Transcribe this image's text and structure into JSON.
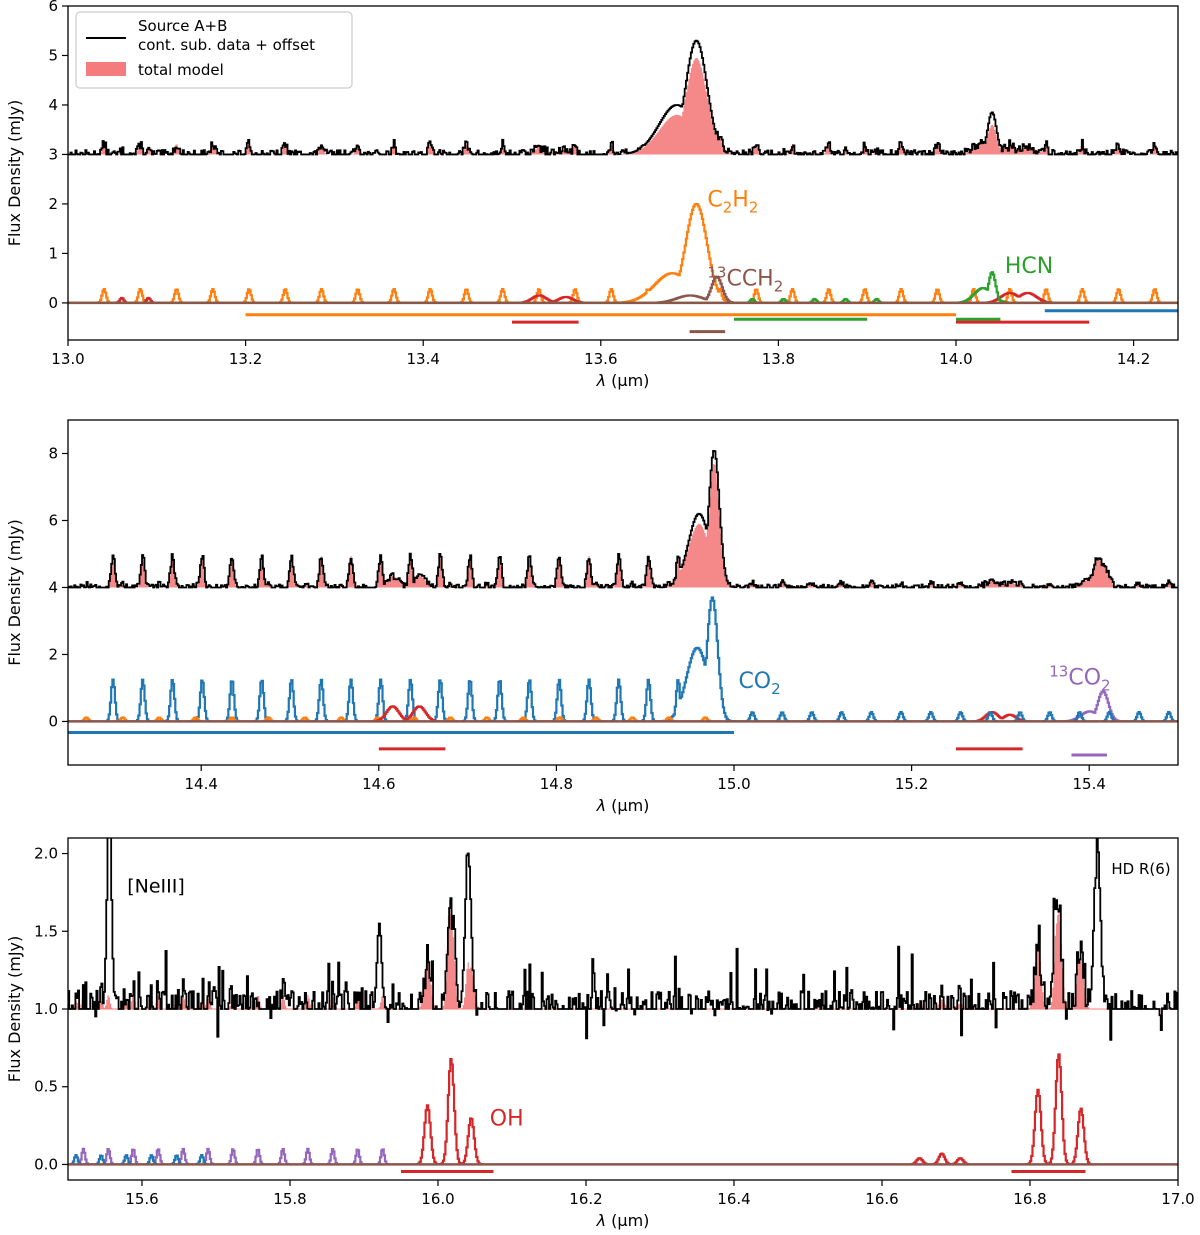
{
  "legend": {
    "data_label_line1": "Source A+B",
    "data_label_line2": "cont. sub. data + offset",
    "model_label": "total model"
  },
  "colors": {
    "data": "#000000",
    "model": "#f47c7c",
    "C2H2": "#ff7f0e",
    "13CCH2": "#8c564b",
    "HCN": "#2ca02c",
    "OH": "#d62728",
    "CO2": "#1f77b4",
    "13CO2": "#9467bd"
  },
  "chart_data": [
    {
      "type": "line",
      "panel": "top",
      "xlabel_prefix": "λ",
      "xlabel_unit": "(μm)",
      "ylabel": "Flux Density (mJy)",
      "xlim": [
        13.0,
        14.25
      ],
      "ylim": [
        -0.75,
        6.0
      ],
      "xticks": [
        "13.0",
        "13.2",
        "13.4",
        "13.6",
        "13.8",
        "14.0",
        "14.2"
      ],
      "xtick_values": [
        13.0,
        13.2,
        13.4,
        13.6,
        13.8,
        14.0,
        14.2
      ],
      "yticks": [
        "0",
        "1",
        "2",
        "3",
        "4",
        "5",
        "6"
      ],
      "ytick_values": [
        0,
        1,
        2,
        3,
        4,
        5,
        6
      ],
      "data_offset": 3.0,
      "data_peaks": [
        {
          "x": 13.707,
          "y": 5.3,
          "w": 0.012
        },
        {
          "x": 13.685,
          "y": 4.0,
          "w": 0.02
        },
        {
          "x": 14.04,
          "y": 3.85,
          "w": 0.005
        }
      ],
      "model_peaks": [
        {
          "x": 13.707,
          "y": 4.95,
          "w": 0.012
        },
        {
          "x": 13.685,
          "y": 3.8,
          "w": 0.02
        },
        {
          "x": 14.04,
          "y": 3.6,
          "w": 0.005
        }
      ],
      "species": [
        {
          "name": "C2H2",
          "lines": {
            "start": 13.04,
            "step": 0.0408,
            "end": 14.24,
            "h": 0.28
          },
          "peaks": [
            {
              "x": 13.707,
              "y": 2.0,
              "w": 0.012
            },
            {
              "x": 13.68,
              "y": 0.6,
              "w": 0.02
            }
          ]
        },
        {
          "name": "OH",
          "lines": {
            "start": 13.06,
            "step": 0.03,
            "end": 13.1,
            "h": 0.1
          },
          "peaks": [
            {
              "x": 13.53,
              "y": 0.15,
              "w": 0.008
            },
            {
              "x": 13.56,
              "y": 0.12,
              "w": 0.008
            },
            {
              "x": 14.06,
              "y": 0.2,
              "w": 0.01
            },
            {
              "x": 14.08,
              "y": 0.2,
              "w": 0.01
            }
          ]
        },
        {
          "name": "13CCH2",
          "lines": null,
          "peaks": [
            {
              "x": 13.73,
              "y": 0.53,
              "w": 0.006
            },
            {
              "x": 13.7,
              "y": 0.15,
              "w": 0.015
            }
          ]
        },
        {
          "name": "HCN",
          "lines": {
            "start": 13.77,
            "step": 0.035,
            "end": 13.92,
            "h": 0.08
          },
          "peaks": [
            {
              "x": 14.04,
              "y": 0.62,
              "w": 0.004
            },
            {
              "x": 14.03,
              "y": 0.3,
              "w": 0.01
            }
          ]
        }
      ],
      "labels": [
        {
          "text": "C",
          "sub": "2",
          "text2": "H",
          "sub2": "2",
          "sup": "",
          "x": 13.72,
          "y": 1.95,
          "species": "C2H2"
        },
        {
          "text": "CCH",
          "sub": "2",
          "text2": "",
          "sub2": "",
          "sup": "13",
          "x": 13.72,
          "y": 0.35,
          "species": "13CCH2"
        },
        {
          "text": "HCN",
          "sub": "",
          "text2": "",
          "sub2": "",
          "sup": "",
          "x": 14.055,
          "y": 0.6,
          "species": "HCN"
        }
      ],
      "bars": [
        {
          "species": "C2H2",
          "x1": 13.2,
          "x2": 14.0,
          "y": -0.24
        },
        {
          "species": "OH",
          "x1": 13.5,
          "x2": 13.575,
          "y": -0.39
        },
        {
          "species": "13CCH2",
          "x1": 13.7,
          "x2": 13.74,
          "y": -0.58
        },
        {
          "species": "HCN",
          "x1": 13.75,
          "x2": 13.9,
          "y": -0.33
        },
        {
          "species": "HCN",
          "x1": 14.0,
          "x2": 14.05,
          "y": -0.33
        },
        {
          "species": "OH",
          "x1": 14.0,
          "x2": 14.15,
          "y": -0.39
        },
        {
          "species": "CO2",
          "x1": 14.1,
          "x2": 14.25,
          "y": -0.16
        }
      ]
    },
    {
      "type": "line",
      "panel": "middle",
      "xlabel_prefix": "λ",
      "xlabel_unit": "(μm)",
      "ylabel": "Flux Density (mJy)",
      "xlim": [
        14.25,
        15.5
      ],
      "ylim": [
        -1.3,
        9.0
      ],
      "xticks": [
        "14.4",
        "14.6",
        "14.8",
        "15.0",
        "15.2",
        "15.4"
      ],
      "xtick_values": [
        14.4,
        14.6,
        14.8,
        15.0,
        15.2,
        15.4
      ],
      "yticks": [
        "0",
        "2",
        "4",
        "6",
        "8"
      ],
      "ytick_values": [
        0,
        2,
        4,
        6,
        8
      ],
      "data_offset": 4.0,
      "data_peaks": [
        {
          "x": 14.977,
          "y": 8.1,
          "w": 0.006
        },
        {
          "x": 14.96,
          "y": 6.2,
          "w": 0.012
        },
        {
          "x": 15.41,
          "y": 4.6,
          "w": 0.006
        }
      ],
      "model_peaks": [
        {
          "x": 14.977,
          "y": 7.7,
          "w": 0.006
        },
        {
          "x": 14.96,
          "y": 5.9,
          "w": 0.012
        },
        {
          "x": 15.41,
          "y": 4.9,
          "w": 0.006
        }
      ],
      "species": [
        {
          "name": "CO2",
          "lines": {
            "start": 14.3,
            "step": 0.0335,
            "end": 14.94,
            "h": 1.25
          },
          "peaks": [
            {
              "x": 14.975,
              "y": 3.7,
              "w": 0.006
            },
            {
              "x": 14.958,
              "y": 2.2,
              "w": 0.012
            }
          ]
        },
        {
          "name": "C2H2",
          "lines": {
            "start": 14.27,
            "step": 0.041,
            "end": 14.99,
            "h": 0.12
          },
          "peaks": []
        },
        {
          "name": "OH",
          "lines": null,
          "peaks": [
            {
              "x": 14.615,
              "y": 0.45,
              "w": 0.007
            },
            {
              "x": 14.645,
              "y": 0.45,
              "w": 0.007
            },
            {
              "x": 15.29,
              "y": 0.28,
              "w": 0.007
            },
            {
              "x": 15.31,
              "y": 0.2,
              "w": 0.007
            }
          ]
        },
        {
          "name": "13CO2",
          "lines": null,
          "peaks": [
            {
              "x": 15.415,
              "y": 0.9,
              "w": 0.006
            },
            {
              "x": 15.4,
              "y": 0.3,
              "w": 0.01
            }
          ]
        }
      ],
      "co2_tail": {
        "start": 15.02,
        "step": 0.0335,
        "end": 15.5,
        "h": 0.28
      },
      "labels": [
        {
          "text": "CO",
          "sub": "2",
          "text2": "",
          "sub2": "",
          "sup": "",
          "x": 15.005,
          "y": 1.0,
          "species": "CO2"
        },
        {
          "text": "CO",
          "sub": "2",
          "text2": "",
          "sub2": "",
          "sup": "13",
          "x": 15.355,
          "y": 1.1,
          "species": "13CO2"
        }
      ],
      "bars": [
        {
          "species": "CO2",
          "x1": 14.25,
          "x2": 15.0,
          "y": -0.33
        },
        {
          "species": "OH",
          "x1": 14.6,
          "x2": 14.675,
          "y": -0.82
        },
        {
          "species": "OH",
          "x1": 15.25,
          "x2": 15.325,
          "y": -0.82
        },
        {
          "species": "13CO2",
          "x1": 15.38,
          "x2": 15.42,
          "y": -1.0
        }
      ]
    },
    {
      "type": "line",
      "panel": "bottom",
      "xlabel_prefix": "λ",
      "xlabel_unit": "(μm)",
      "ylabel": "Flux Density (mJy)",
      "xlim": [
        15.5,
        17.0
      ],
      "ylim": [
        -0.1,
        2.1
      ],
      "xticks": [
        "15.6",
        "15.8",
        "16.0",
        "16.2",
        "16.4",
        "16.6",
        "16.8",
        "17.0"
      ],
      "xtick_values": [
        15.6,
        15.8,
        16.0,
        16.2,
        16.4,
        16.6,
        16.8,
        17.0
      ],
      "yticks": [
        "0.0",
        "0.5",
        "1.0",
        "1.5",
        "2.0"
      ],
      "ytick_values": [
        0.0,
        0.5,
        1.0,
        1.5,
        2.0
      ],
      "data_offset": 1.0,
      "data_peaks": [
        {
          "x": 15.555,
          "y": 2.3,
          "w": 0.003
        },
        {
          "x": 16.04,
          "y": 2.0,
          "w": 0.004
        },
        {
          "x": 16.02,
          "y": 1.6,
          "w": 0.003
        },
        {
          "x": 15.92,
          "y": 1.55,
          "w": 0.003
        },
        {
          "x": 16.835,
          "y": 1.7,
          "w": 0.004
        },
        {
          "x": 16.89,
          "y": 2.1,
          "w": 0.004
        }
      ],
      "model_peaks": [
        {
          "x": 15.985,
          "y": 1.35,
          "w": 0.003
        },
        {
          "x": 16.015,
          "y": 1.7,
          "w": 0.003
        },
        {
          "x": 16.04,
          "y": 1.3,
          "w": 0.003
        },
        {
          "x": 16.81,
          "y": 1.35,
          "w": 0.003
        },
        {
          "x": 16.835,
          "y": 1.55,
          "w": 0.003
        },
        {
          "x": 16.865,
          "y": 1.3,
          "w": 0.003
        }
      ],
      "species": [
        {
          "name": "OH",
          "lines": null,
          "peaks": [
            {
              "x": 15.985,
              "y": 0.38,
              "w": 0.004
            },
            {
              "x": 16.017,
              "y": 0.68,
              "w": 0.004
            },
            {
              "x": 16.044,
              "y": 0.3,
              "w": 0.004
            },
            {
              "x": 16.81,
              "y": 0.48,
              "w": 0.004
            },
            {
              "x": 16.838,
              "y": 0.71,
              "w": 0.004
            },
            {
              "x": 16.868,
              "y": 0.36,
              "w": 0.004
            },
            {
              "x": 16.65,
              "y": 0.04,
              "w": 0.004
            },
            {
              "x": 16.68,
              "y": 0.07,
              "w": 0.004
            },
            {
              "x": 16.705,
              "y": 0.04,
              "w": 0.004
            }
          ]
        },
        {
          "name": "13CO2",
          "lines": {
            "start": 15.52,
            "step": 0.0337,
            "end": 15.95,
            "h": 0.1
          },
          "peaks": []
        },
        {
          "name": "CO2",
          "lines": {
            "start": 15.51,
            "step": 0.034,
            "end": 15.7,
            "h": 0.06
          },
          "peaks": []
        }
      ],
      "labels": [
        {
          "text": "OH",
          "sub": "",
          "text2": "",
          "sub2": "",
          "sup": "",
          "x": 16.07,
          "y": 0.25,
          "species": "OH"
        }
      ],
      "plain_labels": [
        {
          "text": "[NeIII]",
          "x": 15.58,
          "y": 1.75,
          "size": "plain"
        },
        {
          "text": "HD R(6)",
          "x": 16.91,
          "y": 1.87,
          "size": "small"
        }
      ],
      "bars": [
        {
          "species": "OH",
          "x1": 15.95,
          "x2": 16.075,
          "y": -0.045
        },
        {
          "species": "OH",
          "x1": 16.775,
          "x2": 16.875,
          "y": -0.045
        }
      ]
    }
  ]
}
